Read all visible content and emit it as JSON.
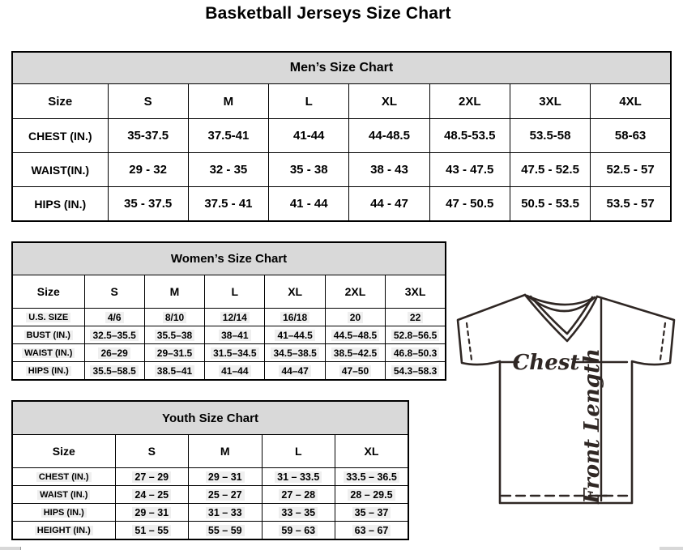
{
  "title": "Basketball Jerseys Size Chart",
  "tables": [
    {
      "id": "mens",
      "caption": "Men’s Size Chart",
      "header": [
        "Size",
        "S",
        "M",
        "L",
        "XL",
        "2XL",
        "3XL",
        "4XL"
      ],
      "rows": [
        [
          "CHEST (IN.)",
          "35-37.5",
          "37.5-41",
          "41-44",
          "44-48.5",
          "48.5-53.5",
          "53.5-58",
          "58-63"
        ],
        [
          "WAIST(IN.)",
          "29 - 32",
          "32 - 35",
          "35 - 38",
          "38 - 43",
          "43 - 47.5",
          "47.5 - 52.5",
          "52.5 - 57"
        ],
        [
          "HIPS (IN.)",
          "35 - 37.5",
          "37.5 - 41",
          "41 - 44",
          "44 - 47",
          "47 - 50.5",
          "50.5 - 53.5",
          "53.5 - 57"
        ]
      ]
    },
    {
      "id": "womens",
      "caption": "Women’s Size Chart",
      "header": [
        "Size",
        "S",
        "M",
        "L",
        "XL",
        "2XL",
        "3XL"
      ],
      "rows": [
        [
          "U.S. SIZE",
          "4/6",
          "8/10",
          "12/14",
          "16/18",
          "20",
          "22"
        ],
        [
          "BUST (IN.)",
          "32.5–35.5",
          "35.5–38",
          "38–41",
          "41–44.5",
          "44.5–48.5",
          "52.8–56.5"
        ],
        [
          "WAIST (IN.)",
          "26–29",
          "29–31.5",
          "31.5–34.5",
          "34.5–38.5",
          "38.5–42.5",
          "46.8–50.3"
        ],
        [
          "HIPS (IN.)",
          "35.5–58.5",
          "38.5–41",
          "41–44",
          "44–47",
          "47–50",
          "54.3–58.3"
        ]
      ]
    },
    {
      "id": "youth",
      "caption": "Youth Size Chart",
      "header": [
        "Size",
        "S",
        "M",
        "L",
        "XL"
      ],
      "rows": [
        [
          "CHEST (IN.)",
          "27 – 29",
          "29 – 31",
          "31 – 33.5",
          "33.5 – 36.5"
        ],
        [
          "WAIST (IN.)",
          "24 – 25",
          "25 – 27",
          "27 – 28",
          "28 – 29.5"
        ],
        [
          "HIPS (IN.)",
          "29 – 31",
          "31 – 33",
          "33 – 35",
          "35 – 37"
        ],
        [
          "HEIGHT (IN.)",
          "51 – 55",
          "55 – 59",
          "59 – 63",
          "63 – 67"
        ]
      ]
    }
  ],
  "diagram": {
    "chest_label": "Chest",
    "front_length_label": "Front Length"
  },
  "colors": {
    "caption_bg": "#d9d9d9",
    "table_border": "#000000",
    "diagram_line": "#2f2724"
  }
}
